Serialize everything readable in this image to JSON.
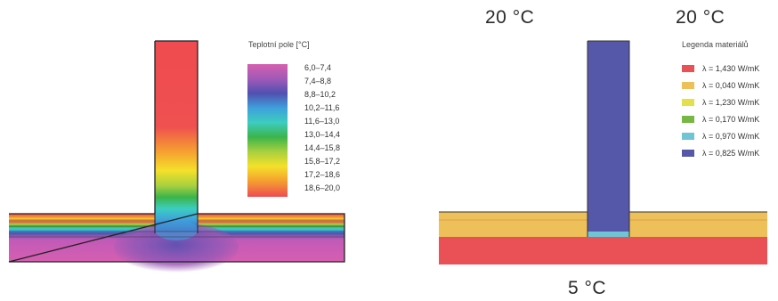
{
  "thermal_field": {
    "legend_title": "Teplotní pole [°C]",
    "scale": [
      {
        "label": "6,0–7,4",
        "color": "#d65fb0"
      },
      {
        "label": "7,4–8,8",
        "color": "#9b59b6"
      },
      {
        "label": "8,8–10,2",
        "color": "#5050b0"
      },
      {
        "label": "10,2–11,6",
        "color": "#3ea0dc"
      },
      {
        "label": "11,6–13,0",
        "color": "#3ccdc0"
      },
      {
        "label": "13,0–14,4",
        "color": "#3cb44a"
      },
      {
        "label": "14,4–15,8",
        "color": "#a8d040"
      },
      {
        "label": "15,8–17,2",
        "color": "#f5e02a"
      },
      {
        "label": "17,2–18,6",
        "color": "#f5a030"
      },
      {
        "label": "18,6–20,0",
        "color": "#ef4b50"
      }
    ]
  },
  "materials": {
    "legend_title": "Legenda materiálů",
    "items": [
      {
        "label": "λ = 1,430 W/mK",
        "color": "#ea5157"
      },
      {
        "label": "λ = 0,040 W/mK",
        "color": "#eec05a"
      },
      {
        "label": "λ = 1,230 W/mK",
        "color": "#e3e04c"
      },
      {
        "label": "λ = 0,170 W/mK",
        "color": "#76b844"
      },
      {
        "label": "λ = 0,970 W/mK",
        "color": "#6fc5d5"
      },
      {
        "label": "λ = 0,825 W/mK",
        "color": "#5557a8"
      }
    ]
  },
  "temperatures": {
    "inner_left": "20 °C",
    "inner_right": "20 °C",
    "outer": "5 °C"
  }
}
